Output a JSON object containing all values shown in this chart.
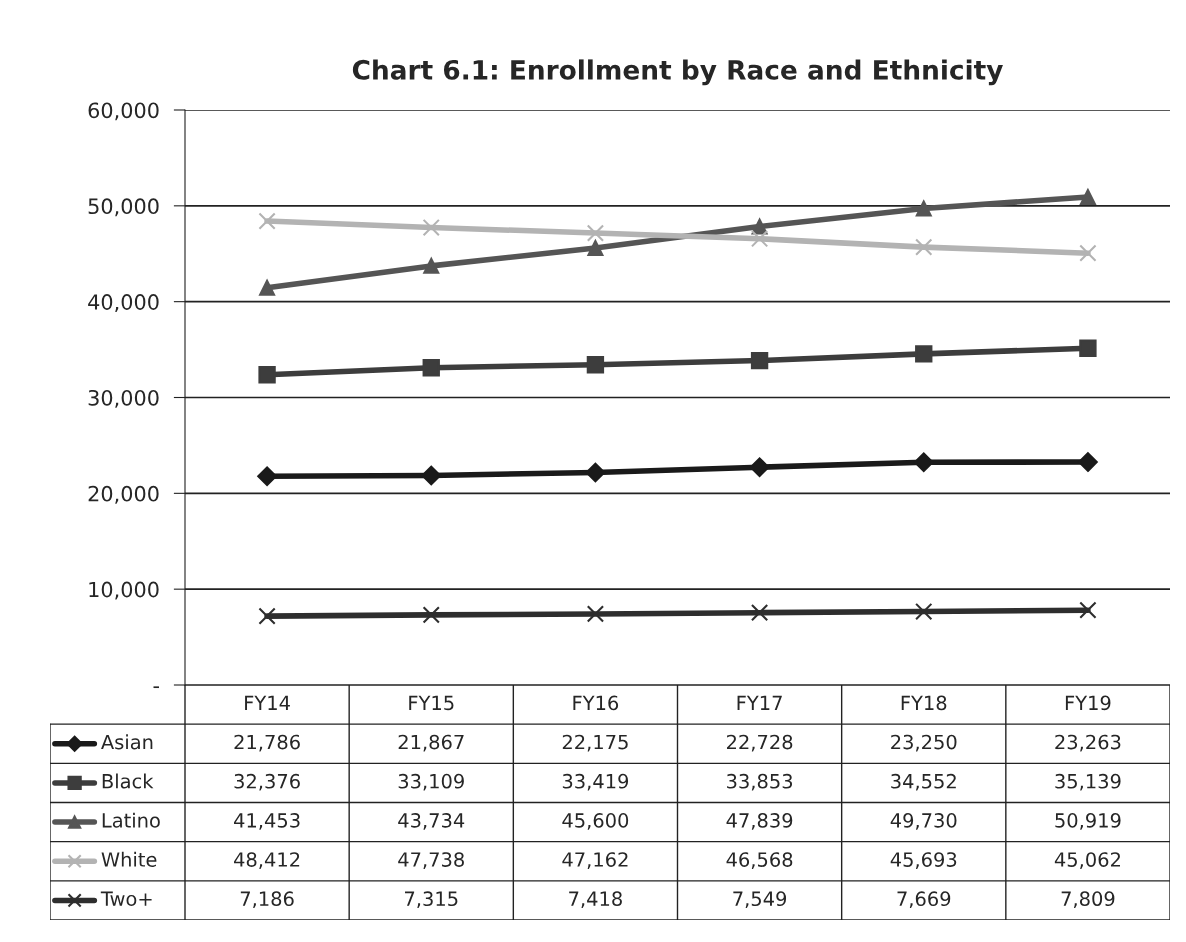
{
  "chart_data": {
    "type": "line",
    "title": "Chart 6.1: Enrollment by Race and Ethnicity",
    "categories": [
      "FY14",
      "FY15",
      "FY16",
      "FY17",
      "FY18",
      "FY19"
    ],
    "series": [
      {
        "name": "Asian",
        "color": "#1a1a1a",
        "marker": "diamond",
        "values": [
          21786,
          21867,
          22175,
          22728,
          23250,
          23263
        ],
        "value_labels": [
          "21,786",
          "21,867",
          "22,175",
          "22,728",
          "23,250",
          "23,263"
        ]
      },
      {
        "name": "Black",
        "color": "#3d3d3d",
        "marker": "square",
        "values": [
          32376,
          33109,
          33419,
          33853,
          34552,
          35139
        ],
        "value_labels": [
          "32,376",
          "33,109",
          "33,419",
          "33,853",
          "34,552",
          "35,139"
        ]
      },
      {
        "name": "Latino",
        "color": "#555555",
        "marker": "triangle",
        "values": [
          41453,
          43734,
          45600,
          47839,
          49730,
          50919
        ],
        "value_labels": [
          "41,453",
          "43,734",
          "45,600",
          "47,839",
          "49,730",
          "50,919"
        ]
      },
      {
        "name": "White",
        "color": "#b3b3b3",
        "marker": "cross",
        "values": [
          48412,
          47738,
          47162,
          46568,
          45693,
          45062
        ],
        "value_labels": [
          "48,412",
          "47,738",
          "47,162",
          "46,568",
          "45,693",
          "45,062"
        ]
      },
      {
        "name": "Two+",
        "color": "#2e2e2e",
        "marker": "cross",
        "values": [
          7186,
          7315,
          7418,
          7549,
          7669,
          7809
        ],
        "value_labels": [
          "7,186",
          "7,315",
          "7,418",
          "7,549",
          "7,669",
          "7,809"
        ]
      }
    ],
    "ylim": [
      0,
      60000
    ],
    "yticks": [
      {
        "value": 0,
        "label": "-"
      },
      {
        "value": 10000,
        "label": "10,000"
      },
      {
        "value": 20000,
        "label": "20,000"
      },
      {
        "value": 30000,
        "label": "30,000"
      },
      {
        "value": 40000,
        "label": "40,000"
      },
      {
        "value": 50000,
        "label": "50,000"
      },
      {
        "value": 60000,
        "label": "60,000"
      }
    ],
    "grid": "y",
    "line_style": "solid",
    "legend": "bottom"
  }
}
